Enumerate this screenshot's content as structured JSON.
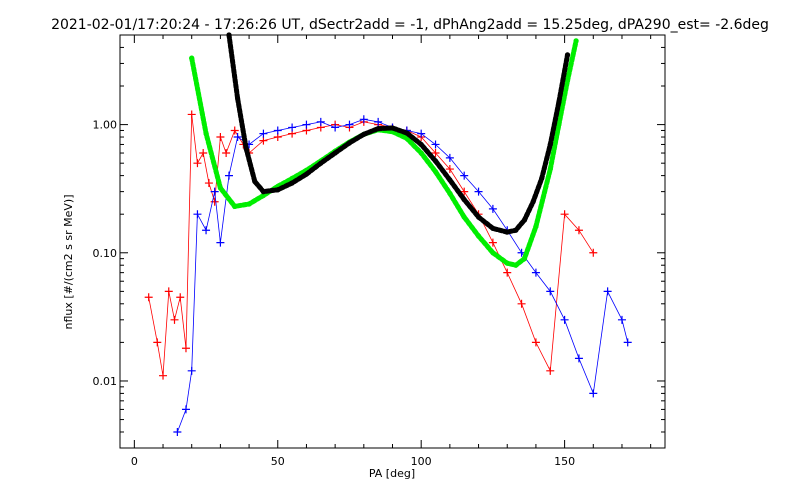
{
  "chart_data": {
    "type": "line",
    "title": "2021-02-01/17:20:24 - 17:26:26 UT, dSectr2add = -1, dPhAng2add = 15.25deg, dPA290_est=  -2.6deg",
    "xlabel": "PA [deg]",
    "ylabel": "nflux [#/(cm2 s sr MeV)]",
    "xlim": [
      -5,
      185
    ],
    "ylim": [
      0.003,
      5
    ],
    "yscale": "log",
    "x_ticks": [
      0,
      50,
      100,
      150
    ],
    "x_tick_labels": [
      "0",
      "50",
      "100",
      "150"
    ],
    "y_ticks": [
      0.01,
      0.1,
      1.0
    ],
    "y_tick_labels": [
      "0.01",
      "0.10",
      "1.00"
    ],
    "grid": false,
    "legend": "none",
    "colors": {
      "series_a": "#ff0000",
      "series_b": "#0000ff",
      "fit_green": "#00ee00",
      "fit_black": "#000000"
    },
    "series": [
      {
        "color": "#00ee00",
        "style": "dots",
        "x": [
          20,
          25,
          30,
          35,
          40,
          45,
          50,
          55,
          60,
          65,
          70,
          75,
          80,
          85,
          90,
          95,
          100,
          105,
          110,
          115,
          120,
          125,
          130,
          133,
          136,
          140,
          145,
          148,
          151,
          154
        ],
        "y": [
          3.3,
          0.85,
          0.32,
          0.23,
          0.24,
          0.28,
          0.33,
          0.38,
          0.44,
          0.52,
          0.62,
          0.73,
          0.84,
          0.91,
          0.88,
          0.78,
          0.6,
          0.43,
          0.29,
          0.19,
          0.135,
          0.1,
          0.083,
          0.08,
          0.09,
          0.16,
          0.45,
          1.0,
          2.2,
          4.5
        ]
      },
      {
        "color": "#000000",
        "style": "dots",
        "x": [
          33,
          36,
          39,
          42,
          45,
          50,
          55,
          60,
          65,
          70,
          75,
          80,
          85,
          90,
          95,
          100,
          105,
          110,
          115,
          120,
          125,
          130,
          133,
          136,
          139,
          142,
          145,
          148,
          151
        ],
        "y": [
          5.0,
          1.6,
          0.65,
          0.36,
          0.3,
          0.31,
          0.35,
          0.41,
          0.5,
          0.6,
          0.72,
          0.84,
          0.93,
          0.94,
          0.86,
          0.7,
          0.52,
          0.37,
          0.26,
          0.19,
          0.155,
          0.145,
          0.15,
          0.18,
          0.25,
          0.38,
          0.7,
          1.5,
          3.5
        ]
      }
    ],
    "scatter_series": [
      {
        "color": "#ff0000",
        "marker": "+",
        "x": [
          5,
          8,
          10,
          12,
          14,
          16,
          18,
          20,
          22,
          24,
          26,
          28,
          30,
          32,
          35,
          38,
          40,
          45,
          50,
          55,
          60,
          65,
          70,
          75,
          80,
          85,
          90,
          95,
          100,
          105,
          110,
          115,
          120,
          125,
          130,
          135,
          140,
          145,
          150,
          155,
          160
        ],
        "y": [
          0.045,
          0.02,
          0.011,
          0.05,
          0.03,
          0.045,
          0.018,
          1.2,
          0.5,
          0.6,
          0.35,
          0.25,
          0.8,
          0.6,
          0.9,
          0.7,
          0.6,
          0.75,
          0.8,
          0.85,
          0.9,
          0.95,
          1.0,
          0.95,
          1.05,
          1.0,
          0.95,
          0.9,
          0.8,
          0.6,
          0.45,
          0.3,
          0.2,
          0.12,
          0.07,
          0.04,
          0.02,
          0.012,
          0.2,
          0.15,
          0.1
        ]
      },
      {
        "color": "#0000ff",
        "marker": "+",
        "x": [
          15,
          18,
          20,
          22,
          25,
          28,
          30,
          33,
          36,
          40,
          45,
          50,
          55,
          60,
          65,
          70,
          75,
          80,
          85,
          90,
          95,
          100,
          105,
          110,
          115,
          120,
          125,
          130,
          135,
          140,
          145,
          150,
          155,
          160,
          165,
          170,
          172
        ],
        "y": [
          0.004,
          0.006,
          0.012,
          0.2,
          0.15,
          0.3,
          0.12,
          0.4,
          0.8,
          0.7,
          0.85,
          0.9,
          0.95,
          1.0,
          1.05,
          0.95,
          1.0,
          1.1,
          1.05,
          0.95,
          0.9,
          0.85,
          0.7,
          0.55,
          0.4,
          0.3,
          0.22,
          0.15,
          0.1,
          0.07,
          0.05,
          0.03,
          0.015,
          0.008,
          0.05,
          0.03,
          0.02
        ]
      }
    ]
  }
}
